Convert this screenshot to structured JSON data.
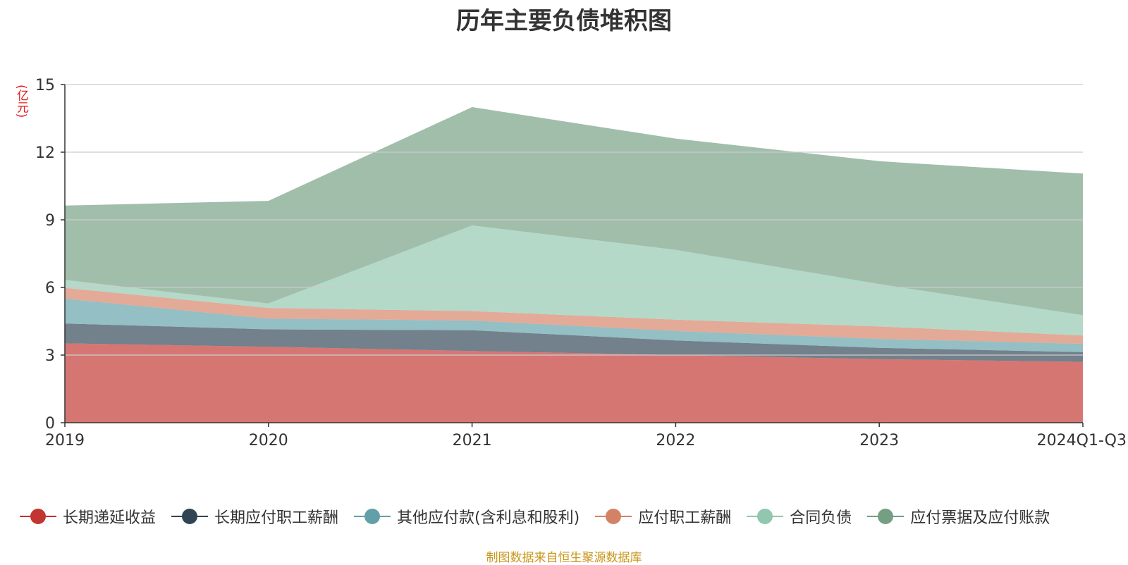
{
  "chart_data": {
    "type": "area",
    "stacked": true,
    "title": "历年主要负债堆积图",
    "y_unit": "(亿元)",
    "categories": [
      "2019",
      "2020",
      "2021",
      "2022",
      "2023",
      "2024Q1-Q3"
    ],
    "ylim": [
      0,
      15
    ],
    "yticks": [
      0,
      3,
      6,
      9,
      12,
      15
    ],
    "grid": true,
    "legend_position": "bottom",
    "series": [
      {
        "name": "长期递延收益",
        "color": "#c23531",
        "values": [
          3.52,
          3.37,
          3.18,
          3.0,
          2.82,
          2.7
        ]
      },
      {
        "name": "长期应付职工薪酬",
        "color": "#2f4554",
        "values": [
          0.88,
          0.77,
          0.92,
          0.65,
          0.5,
          0.43
        ]
      },
      {
        "name": "其他应付款(含利息和股利)",
        "color": "#61a0a8",
        "values": [
          1.1,
          0.48,
          0.43,
          0.42,
          0.4,
          0.37
        ]
      },
      {
        "name": "应付职工薪酬",
        "color": "#d48265",
        "values": [
          0.48,
          0.47,
          0.42,
          0.5,
          0.55,
          0.37
        ]
      },
      {
        "name": "合同负债",
        "color": "#91c7ae",
        "values": [
          0.35,
          0.2,
          3.8,
          3.1,
          1.88,
          0.9
        ]
      },
      {
        "name": "应付票据及应付账款",
        "color": "#749f83",
        "values": [
          3.3,
          4.55,
          5.25,
          4.93,
          5.45,
          6.28
        ]
      }
    ],
    "source_note": "制图数据来自恒生聚源数据库"
  },
  "colors": {
    "title": "#333333",
    "axis": "#333333",
    "grid": "#cccccc",
    "y_unit": "#e31a1c",
    "source_note": "#c8961a"
  }
}
